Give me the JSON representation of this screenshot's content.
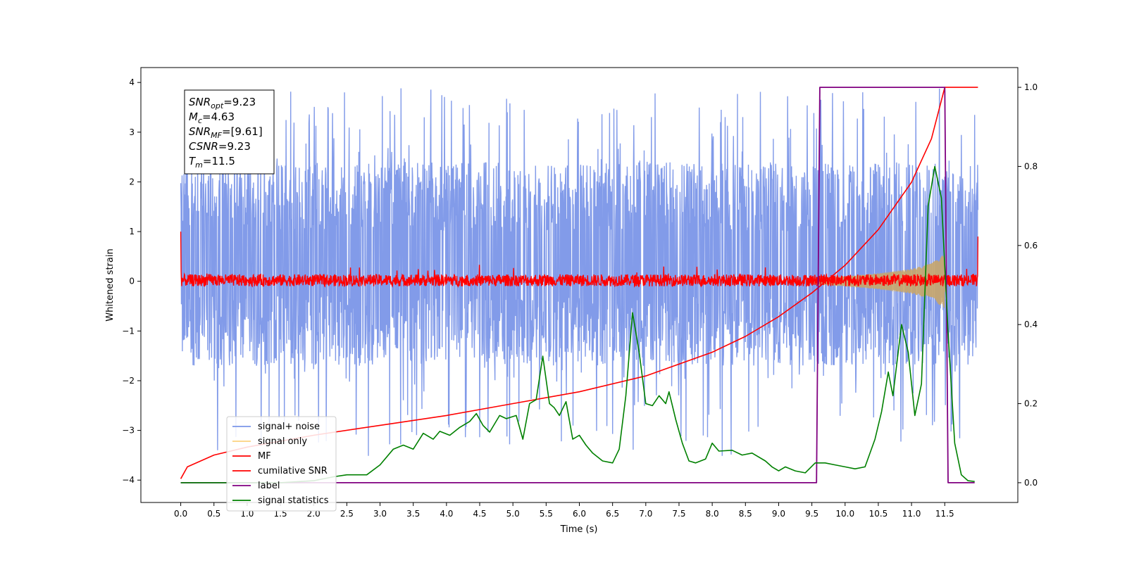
{
  "chart_data": {
    "type": "line",
    "xlabel": "Time (s)",
    "ylabel": "Whitened strain",
    "x_ticks": [
      "0.0",
      "0.5",
      "1.0",
      "1.5",
      "2.0",
      "2.5",
      "3.0",
      "3.5",
      "4.0",
      "4.5",
      "5.0",
      "5.5",
      "6.0",
      "6.5",
      "7.0",
      "7.5",
      "8.0",
      "8.5",
      "9.0",
      "9.5",
      "10.0",
      "10.5",
      "11.0",
      "11.5"
    ],
    "xlim": [
      -0.6,
      12.6
    ],
    "left_axis": {
      "ylim": [
        -4.45,
        4.3
      ],
      "ticks": [
        "−4",
        "−3",
        "−2",
        "−1",
        "0",
        "1",
        "2",
        "3",
        "4"
      ]
    },
    "right_axis": {
      "ylim": [
        -0.05,
        1.05
      ],
      "ticks": [
        "0.0",
        "0.2",
        "0.4",
        "0.6",
        "0.8",
        "1.0"
      ]
    },
    "annotation": {
      "lines": [
        {
          "base": "SNR",
          "sub": "opt",
          "value": "=9.23"
        },
        {
          "base": "M",
          "sub": "c",
          "value": "=4.63"
        },
        {
          "base": "SNR",
          "sub": "MF",
          "value": "=[9.61]"
        },
        {
          "base": "CSNR",
          "sub": "",
          "value": "=9.23"
        },
        {
          "base": "T",
          "sub": "m",
          "value": "=11.5"
        }
      ]
    },
    "legend": {
      "placement": "lower-left",
      "entries": [
        {
          "label": "signal+ noise",
          "color": "#7b96e8"
        },
        {
          "label": "signal only",
          "color": "#fcd27f"
        },
        {
          "label": "MF",
          "color": "#ff0000"
        },
        {
          "label": "cumilative SNR",
          "color": "#ff0000"
        },
        {
          "label": "label",
          "color": "#800080"
        },
        {
          "label": "signal statistics",
          "color": "#008000"
        }
      ]
    },
    "series": [
      {
        "name": "signal+ noise",
        "axis": "left",
        "color": "#7b96e8",
        "x_range": [
          0.0,
          12.0
        ],
        "envelope": {
          "typical_min": -1.7,
          "typical_max": 2.4,
          "extreme_min": -4.15,
          "extreme_max": 3.92
        }
      },
      {
        "name": "signal only",
        "axis": "left",
        "color": "#c8a66a",
        "x_range": [
          9.5,
          11.5
        ],
        "amplitude": [
          [
            9.5,
            0.05
          ],
          [
            10.0,
            0.1
          ],
          [
            10.5,
            0.16
          ],
          [
            11.0,
            0.25
          ],
          [
            11.3,
            0.36
          ],
          [
            11.5,
            0.55
          ]
        ]
      },
      {
        "name": "MF",
        "axis": "left",
        "color": "#ff0000",
        "x_range": [
          0.0,
          12.0
        ],
        "baseline": 0.02,
        "spread": 0.12,
        "start_value": 1.0,
        "end_value": 0.9
      },
      {
        "name": "cumilative SNR",
        "axis": "right",
        "color": "#ff0000",
        "points": [
          [
            0.0,
            0.01
          ],
          [
            0.1,
            0.04
          ],
          [
            0.5,
            0.07
          ],
          [
            1.0,
            0.09
          ],
          [
            2.0,
            0.12
          ],
          [
            3.0,
            0.145
          ],
          [
            4.0,
            0.17
          ],
          [
            5.0,
            0.2
          ],
          [
            6.0,
            0.23
          ],
          [
            7.0,
            0.27
          ],
          [
            8.0,
            0.33
          ],
          [
            8.5,
            0.37
          ],
          [
            9.0,
            0.42
          ],
          [
            9.5,
            0.48
          ],
          [
            10.0,
            0.55
          ],
          [
            10.5,
            0.64
          ],
          [
            11.0,
            0.76
          ],
          [
            11.3,
            0.87
          ],
          [
            11.5,
            1.0
          ],
          [
            12.0,
            1.0
          ]
        ]
      },
      {
        "name": "label",
        "axis": "right",
        "color": "#800080",
        "points": [
          [
            0.0,
            0.0
          ],
          [
            9.57,
            0.0
          ],
          [
            9.62,
            1.0
          ],
          [
            11.5,
            1.0
          ],
          [
            11.55,
            0.0
          ],
          [
            11.95,
            0.0
          ]
        ]
      },
      {
        "name": "signal statistics",
        "axis": "right",
        "color": "#008000",
        "points": [
          [
            0.0,
            0.0
          ],
          [
            0.5,
            0.0
          ],
          [
            1.0,
            0.0
          ],
          [
            1.5,
            0.0
          ],
          [
            2.0,
            0.005
          ],
          [
            2.3,
            0.015
          ],
          [
            2.5,
            0.02
          ],
          [
            2.8,
            0.02
          ],
          [
            3.0,
            0.045
          ],
          [
            3.2,
            0.085
          ],
          [
            3.35,
            0.095
          ],
          [
            3.5,
            0.085
          ],
          [
            3.65,
            0.125
          ],
          [
            3.8,
            0.11
          ],
          [
            3.9,
            0.13
          ],
          [
            4.05,
            0.12
          ],
          [
            4.2,
            0.14
          ],
          [
            4.35,
            0.155
          ],
          [
            4.45,
            0.175
          ],
          [
            4.55,
            0.145
          ],
          [
            4.65,
            0.128
          ],
          [
            4.8,
            0.17
          ],
          [
            4.9,
            0.162
          ],
          [
            5.05,
            0.17
          ],
          [
            5.15,
            0.11
          ],
          [
            5.25,
            0.2
          ],
          [
            5.35,
            0.21
          ],
          [
            5.45,
            0.32
          ],
          [
            5.55,
            0.2
          ],
          [
            5.62,
            0.19
          ],
          [
            5.7,
            0.17
          ],
          [
            5.8,
            0.205
          ],
          [
            5.9,
            0.11
          ],
          [
            6.0,
            0.12
          ],
          [
            6.1,
            0.095
          ],
          [
            6.2,
            0.075
          ],
          [
            6.35,
            0.055
          ],
          [
            6.5,
            0.05
          ],
          [
            6.6,
            0.085
          ],
          [
            6.7,
            0.22
          ],
          [
            6.8,
            0.43
          ],
          [
            6.9,
            0.33
          ],
          [
            7.0,
            0.2
          ],
          [
            7.1,
            0.195
          ],
          [
            7.2,
            0.22
          ],
          [
            7.3,
            0.2
          ],
          [
            7.35,
            0.23
          ],
          [
            7.45,
            0.16
          ],
          [
            7.55,
            0.1
          ],
          [
            7.65,
            0.055
          ],
          [
            7.75,
            0.05
          ],
          [
            7.9,
            0.06
          ],
          [
            8.0,
            0.1
          ],
          [
            8.1,
            0.08
          ],
          [
            8.3,
            0.082
          ],
          [
            8.45,
            0.07
          ],
          [
            8.6,
            0.075
          ],
          [
            8.8,
            0.055
          ],
          [
            8.9,
            0.04
          ],
          [
            9.0,
            0.03
          ],
          [
            9.1,
            0.04
          ],
          [
            9.25,
            0.03
          ],
          [
            9.4,
            0.025
          ],
          [
            9.55,
            0.05
          ],
          [
            9.7,
            0.05
          ],
          [
            9.85,
            0.045
          ],
          [
            10.0,
            0.04
          ],
          [
            10.15,
            0.035
          ],
          [
            10.3,
            0.04
          ],
          [
            10.45,
            0.11
          ],
          [
            10.55,
            0.18
          ],
          [
            10.65,
            0.28
          ],
          [
            10.72,
            0.22
          ],
          [
            10.85,
            0.4
          ],
          [
            10.95,
            0.33
          ],
          [
            11.05,
            0.17
          ],
          [
            11.15,
            0.25
          ],
          [
            11.25,
            0.7
          ],
          [
            11.35,
            0.8
          ],
          [
            11.45,
            0.72
          ],
          [
            11.55,
            0.38
          ],
          [
            11.65,
            0.1
          ],
          [
            11.75,
            0.02
          ],
          [
            11.85,
            0.005
          ],
          [
            11.95,
            0.003
          ]
        ]
      }
    ]
  }
}
